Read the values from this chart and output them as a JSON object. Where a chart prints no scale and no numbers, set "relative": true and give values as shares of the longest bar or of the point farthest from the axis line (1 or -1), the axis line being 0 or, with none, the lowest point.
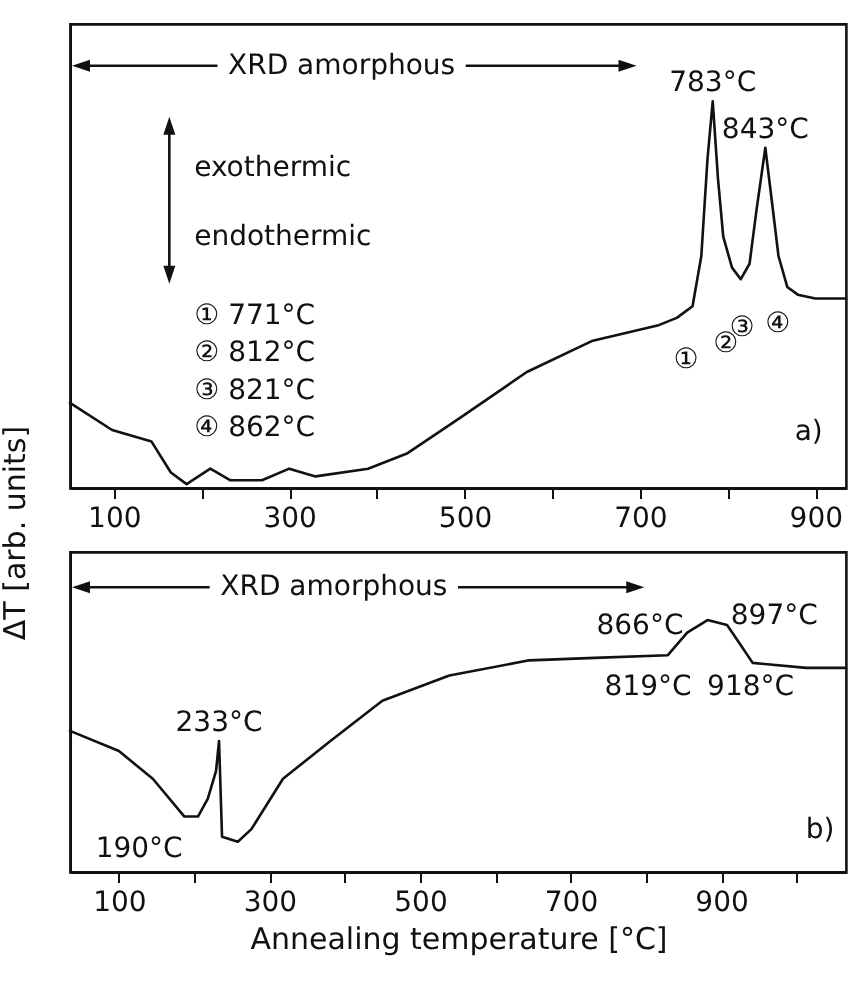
{
  "chart_data": [
    {
      "type": "line",
      "relative": true,
      "ylabel": "ΔT [arb. units]",
      "xlim": [
        50,
        935
      ],
      "xticks": [
        100,
        {
          "value": 200,
          "label": null
        },
        300,
        {
          "value": 400,
          "label": null
        },
        500,
        {
          "value": 600,
          "label": null
        },
        700,
        {
          "value": 800,
          "label": null
        },
        900
      ],
      "series": [
        {
          "color": "#111111",
          "x": [
            50,
            98,
            143,
            165,
            183,
            210,
            233,
            269,
            300,
            330,
            390,
            435,
            494,
            571,
            645,
            720,
            742,
            760,
            770,
            777,
            783,
            789,
            795,
            805,
            815,
            825,
            833,
            843,
            850,
            858,
            868,
            880,
            900,
            935
          ],
          "values": [
            0.22,
            0.15,
            0.12,
            0.04,
            0.01,
            0.05,
            0.02,
            0.02,
            0.05,
            0.03,
            0.05,
            0.09,
            0.18,
            0.3,
            0.38,
            0.42,
            0.44,
            0.47,
            0.6,
            0.85,
            1.0,
            0.8,
            0.65,
            0.57,
            0.54,
            0.58,
            0.72,
            0.88,
            0.75,
            0.6,
            0.52,
            0.5,
            0.49,
            0.49
          ]
        }
      ],
      "annotations": [
        "XRD amorphous",
        "exothermic",
        "endothermic",
        "① 771°C",
        "② 812°C",
        "③ 821°C",
        "④ 862°C",
        {
          "text": "783°C",
          "x": 783,
          "y": 1.0
        },
        {
          "text": "843°C",
          "x": 843,
          "y": 0.88
        },
        "①",
        "②",
        "③",
        "④",
        "a)"
      ]
    },
    {
      "type": "line",
      "relative": true,
      "xlabel": "Annealing temperature [°C]",
      "xlim": [
        35,
        1066
      ],
      "xticks": [
        100,
        {
          "value": 200,
          "label": null
        },
        300,
        {
          "value": 400,
          "label": null
        },
        500,
        {
          "value": 600,
          "label": null
        },
        700,
        {
          "value": 800,
          "label": null
        },
        900,
        {
          "value": 1000,
          "label": null
        }
      ],
      "series": [
        {
          "color": "#111111",
          "x": [
            35,
            100,
            145,
            187,
            205,
            218,
            229,
            233,
            237,
            258,
            276,
            318,
            381,
            450,
            539,
            645,
            732,
            829,
            855,
            882,
            908,
            924,
            942,
            1013,
            1066
          ],
          "values": [
            0.56,
            0.48,
            0.37,
            0.22,
            0.22,
            0.29,
            0.4,
            0.52,
            0.14,
            0.12,
            0.17,
            0.37,
            0.52,
            0.68,
            0.78,
            0.84,
            0.85,
            0.86,
            0.95,
            1.0,
            0.98,
            0.91,
            0.83,
            0.81,
            0.81
          ]
        }
      ],
      "annotations": [
        "XRD amorphous",
        {
          "text": "233°C",
          "x": 233,
          "y": 0.52
        },
        {
          "text": "190°C",
          "x": 190,
          "y": 0.22
        },
        {
          "text": "866°C",
          "x": 866,
          "y": 0.93
        },
        {
          "text": "897°C",
          "x": 897,
          "y": 0.97
        },
        {
          "text": "819°C",
          "x": 819,
          "y": 0.86
        },
        {
          "text": "918°C",
          "x": 918,
          "y": 0.86
        },
        "b)"
      ]
    }
  ]
}
